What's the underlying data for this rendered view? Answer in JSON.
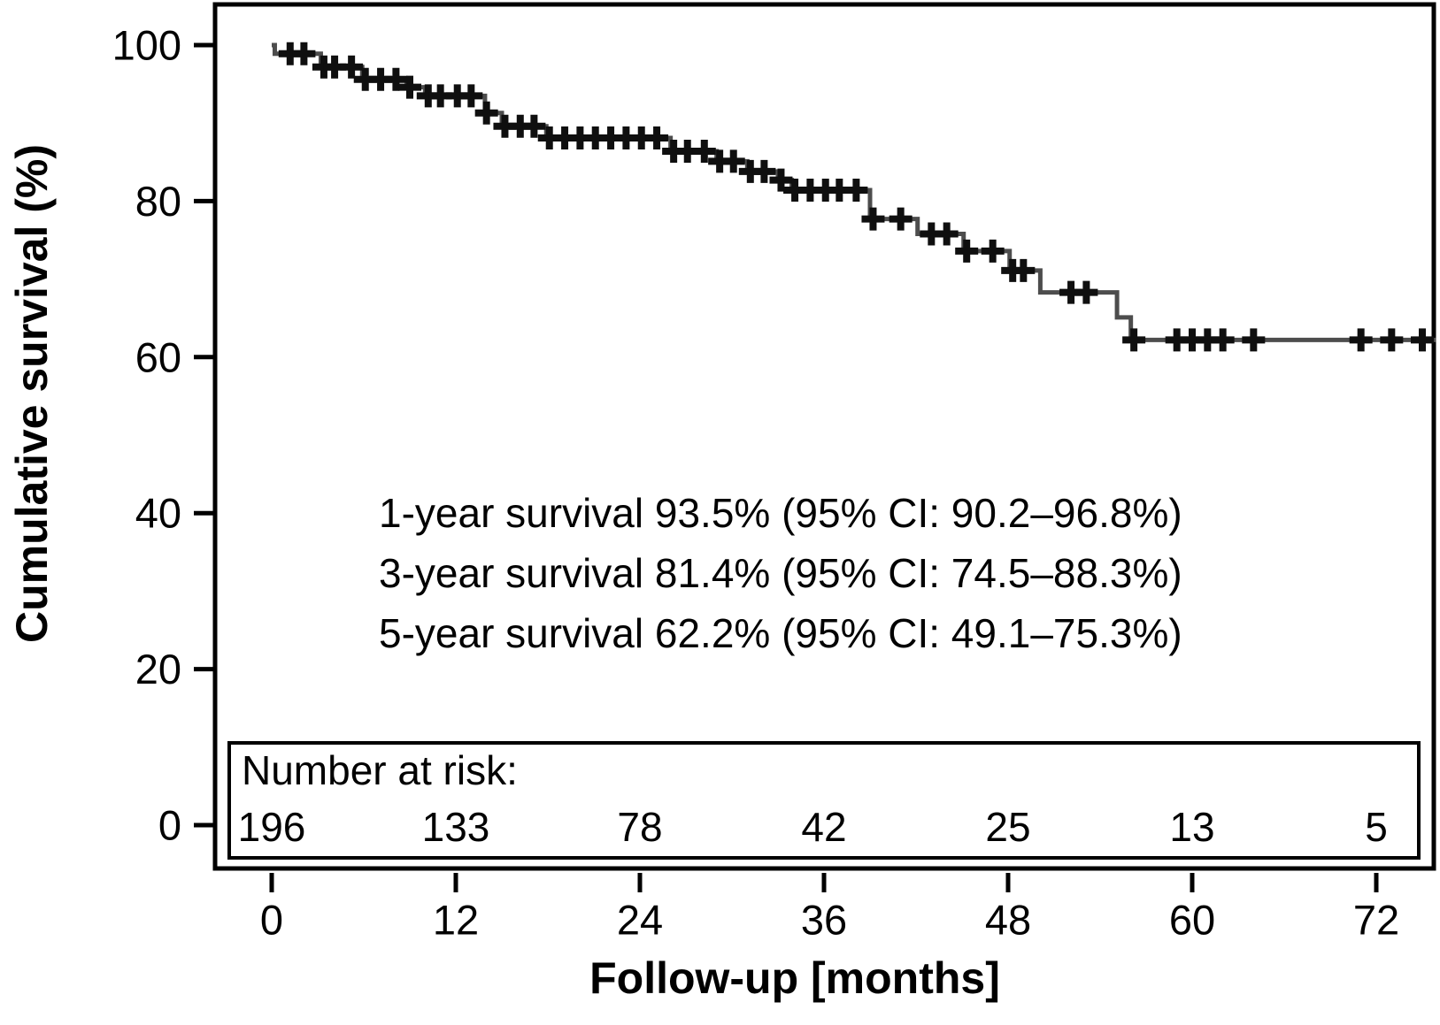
{
  "figure": {
    "y_axis": {
      "title": "Cumulative survival (%)"
    },
    "x_axis": {
      "title": "Follow-up [months]"
    },
    "annotations": {
      "line1": "1-year survival 93.5% (95% CI: 90.2–96.8%)",
      "line2": "3-year survival 81.4% (95% CI: 74.5–88.3%)",
      "line3": "5-year survival 62.2% (95% CI: 49.1–75.3%)"
    },
    "number_at_risk": {
      "label": "Number at risk:"
    }
  },
  "chart_data": {
    "type": "line",
    "subtype": "kaplan-meier-step",
    "title": "",
    "xlabel": "Follow-up [months]",
    "ylabel": "Cumulative survival (%)",
    "x_ticks": [
      0,
      12,
      24,
      36,
      48,
      60,
      72
    ],
    "y_ticks": [
      0,
      20,
      40,
      60,
      80,
      100
    ],
    "xlim": [
      -3.8,
      75.9
    ],
    "ylim": [
      -5.9,
      105.4
    ],
    "grid": false,
    "steps": [
      [
        0,
        100
      ],
      [
        0.2,
        98.9
      ],
      [
        3.2,
        97.2
      ],
      [
        5.9,
        95.6
      ],
      [
        8.8,
        94.6
      ],
      [
        10.0,
        93.5
      ],
      [
        13.9,
        91.3
      ],
      [
        15.0,
        89.6
      ],
      [
        17.9,
        88.1
      ],
      [
        26.0,
        86.4
      ],
      [
        29.0,
        85.1
      ],
      [
        31.0,
        83.8
      ],
      [
        33.0,
        82.7
      ],
      [
        33.9,
        81.4
      ],
      [
        39.0,
        77.7
      ],
      [
        42.1,
        75.8
      ],
      [
        45.1,
        73.6
      ],
      [
        48.1,
        71.1
      ],
      [
        50.1,
        68.3
      ],
      [
        55.1,
        65.1
      ],
      [
        56.0,
        62.2
      ]
    ],
    "end_time": 75.9,
    "censors": [
      [
        1.2,
        98.9
      ],
      [
        2.1,
        98.9
      ],
      [
        3.4,
        97.2
      ],
      [
        4.1,
        97.2
      ],
      [
        5.2,
        97.2
      ],
      [
        6.1,
        95.6
      ],
      [
        7.1,
        95.6
      ],
      [
        8.1,
        95.6
      ],
      [
        9.0,
        94.6
      ],
      [
        10.2,
        93.5
      ],
      [
        11.0,
        93.5
      ],
      [
        12.1,
        93.5
      ],
      [
        13.0,
        93.5
      ],
      [
        14.0,
        91.3
      ],
      [
        15.2,
        89.6
      ],
      [
        16.2,
        89.6
      ],
      [
        17.1,
        89.6
      ],
      [
        18.1,
        88.1
      ],
      [
        19.1,
        88.1
      ],
      [
        20.1,
        88.1
      ],
      [
        21.1,
        88.1
      ],
      [
        22.1,
        88.1
      ],
      [
        23.1,
        88.1
      ],
      [
        24.1,
        88.1
      ],
      [
        25.1,
        88.1
      ],
      [
        26.2,
        86.4
      ],
      [
        27.1,
        86.4
      ],
      [
        28.2,
        86.4
      ],
      [
        29.2,
        85.1
      ],
      [
        30.1,
        85.1
      ],
      [
        31.2,
        83.8
      ],
      [
        32.1,
        83.8
      ],
      [
        33.2,
        82.7
      ],
      [
        34.1,
        81.4
      ],
      [
        35.1,
        81.4
      ],
      [
        36.1,
        81.4
      ],
      [
        37.0,
        81.4
      ],
      [
        38.1,
        81.4
      ],
      [
        39.2,
        77.7
      ],
      [
        41.0,
        77.7
      ],
      [
        43.0,
        75.8
      ],
      [
        44.0,
        75.8
      ],
      [
        45.3,
        73.6
      ],
      [
        47.0,
        73.6
      ],
      [
        48.3,
        71.1
      ],
      [
        49.0,
        71.1
      ],
      [
        52.1,
        68.3
      ],
      [
        53.1,
        68.3
      ],
      [
        56.2,
        62.2
      ],
      [
        59.0,
        62.2
      ],
      [
        60.0,
        62.2
      ],
      [
        61.0,
        62.2
      ],
      [
        62.0,
        62.2
      ],
      [
        64.0,
        62.2
      ],
      [
        71.0,
        62.2
      ],
      [
        73.0,
        62.2
      ],
      [
        75.0,
        62.2
      ]
    ],
    "survival_estimates": [
      {
        "label": "1-year survival",
        "value": "93.5%",
        "ci": "90.2–96.8%"
      },
      {
        "label": "3-year survival",
        "value": "81.4%",
        "ci": "74.5–88.3%"
      },
      {
        "label": "5-year survival",
        "value": "62.2%",
        "ci": "49.1–75.3%"
      }
    ],
    "number_at_risk": {
      "times": [
        0,
        12,
        24,
        36,
        48,
        60,
        72
      ],
      "counts": [
        196,
        133,
        78,
        42,
        25,
        13,
        5
      ]
    },
    "colors": {
      "curve": "#4d4d4d",
      "censor": "#0f0f0f",
      "frame": "#000000",
      "text": "#000000"
    }
  }
}
